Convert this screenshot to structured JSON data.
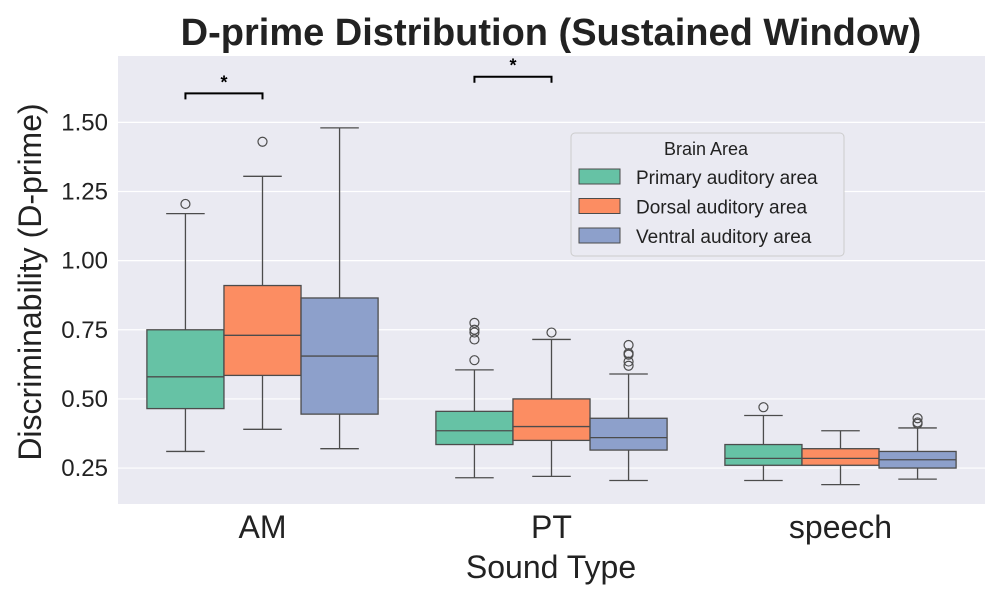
{
  "chart_data": {
    "type": "box",
    "title": "D-prime Distribution (Sustained Window)",
    "xlabel": "Sound Type",
    "ylabel": "Discriminability (D-prime)",
    "ylim": [
      0.12,
      1.74
    ],
    "yticks": [
      "0.25",
      "0.50",
      "0.75",
      "1.00",
      "1.25",
      "1.50"
    ],
    "categories": [
      "AM",
      "PT",
      "speech"
    ],
    "grid": "on",
    "legend": {
      "title": "Brain Area",
      "placement": "upper-center-right"
    },
    "series": [
      {
        "name": "Primary auditory area",
        "color": "#66c2a5",
        "boxes": [
          {
            "whisker_low": 0.31,
            "q1": 0.465,
            "median": 0.58,
            "q3": 0.75,
            "whisker_high": 1.17,
            "outliers": [
              1.205
            ]
          },
          {
            "whisker_low": 0.215,
            "q1": 0.335,
            "median": 0.385,
            "q3": 0.455,
            "whisker_high": 0.605,
            "outliers": [
              0.64,
              0.715,
              0.74,
              0.75,
              0.775
            ]
          },
          {
            "whisker_low": 0.205,
            "q1": 0.26,
            "median": 0.285,
            "q3": 0.335,
            "whisker_high": 0.44,
            "outliers": [
              0.47
            ]
          }
        ]
      },
      {
        "name": "Dorsal auditory area",
        "color": "#fc8d62",
        "boxes": [
          {
            "whisker_low": 0.39,
            "q1": 0.585,
            "median": 0.73,
            "q3": 0.91,
            "whisker_high": 1.305,
            "outliers": [
              1.43
            ]
          },
          {
            "whisker_low": 0.22,
            "q1": 0.35,
            "median": 0.4,
            "q3": 0.5,
            "whisker_high": 0.715,
            "outliers": [
              0.74
            ]
          },
          {
            "whisker_low": 0.19,
            "q1": 0.26,
            "median": 0.285,
            "q3": 0.32,
            "whisker_high": 0.385,
            "outliers": []
          }
        ]
      },
      {
        "name": "Ventral auditory area",
        "color": "#8da0cb",
        "boxes": [
          {
            "whisker_low": 0.32,
            "q1": 0.445,
            "median": 0.655,
            "q3": 0.865,
            "whisker_high": 1.48,
            "outliers": []
          },
          {
            "whisker_low": 0.205,
            "q1": 0.315,
            "median": 0.36,
            "q3": 0.43,
            "whisker_high": 0.59,
            "outliers": [
              0.62,
              0.635,
              0.66,
              0.665,
              0.695
            ]
          },
          {
            "whisker_low": 0.21,
            "q1": 0.25,
            "median": 0.28,
            "q3": 0.31,
            "whisker_high": 0.395,
            "outliers": [
              0.41,
              0.415,
              0.43
            ]
          }
        ]
      }
    ],
    "annotations": [
      {
        "text": "*",
        "category_index": 0,
        "from_series": 0,
        "to_series": 1,
        "y": 1.605
      },
      {
        "text": "*",
        "category_index": 1,
        "from_series": 0,
        "to_series": 1,
        "y": 1.665
      }
    ]
  }
}
